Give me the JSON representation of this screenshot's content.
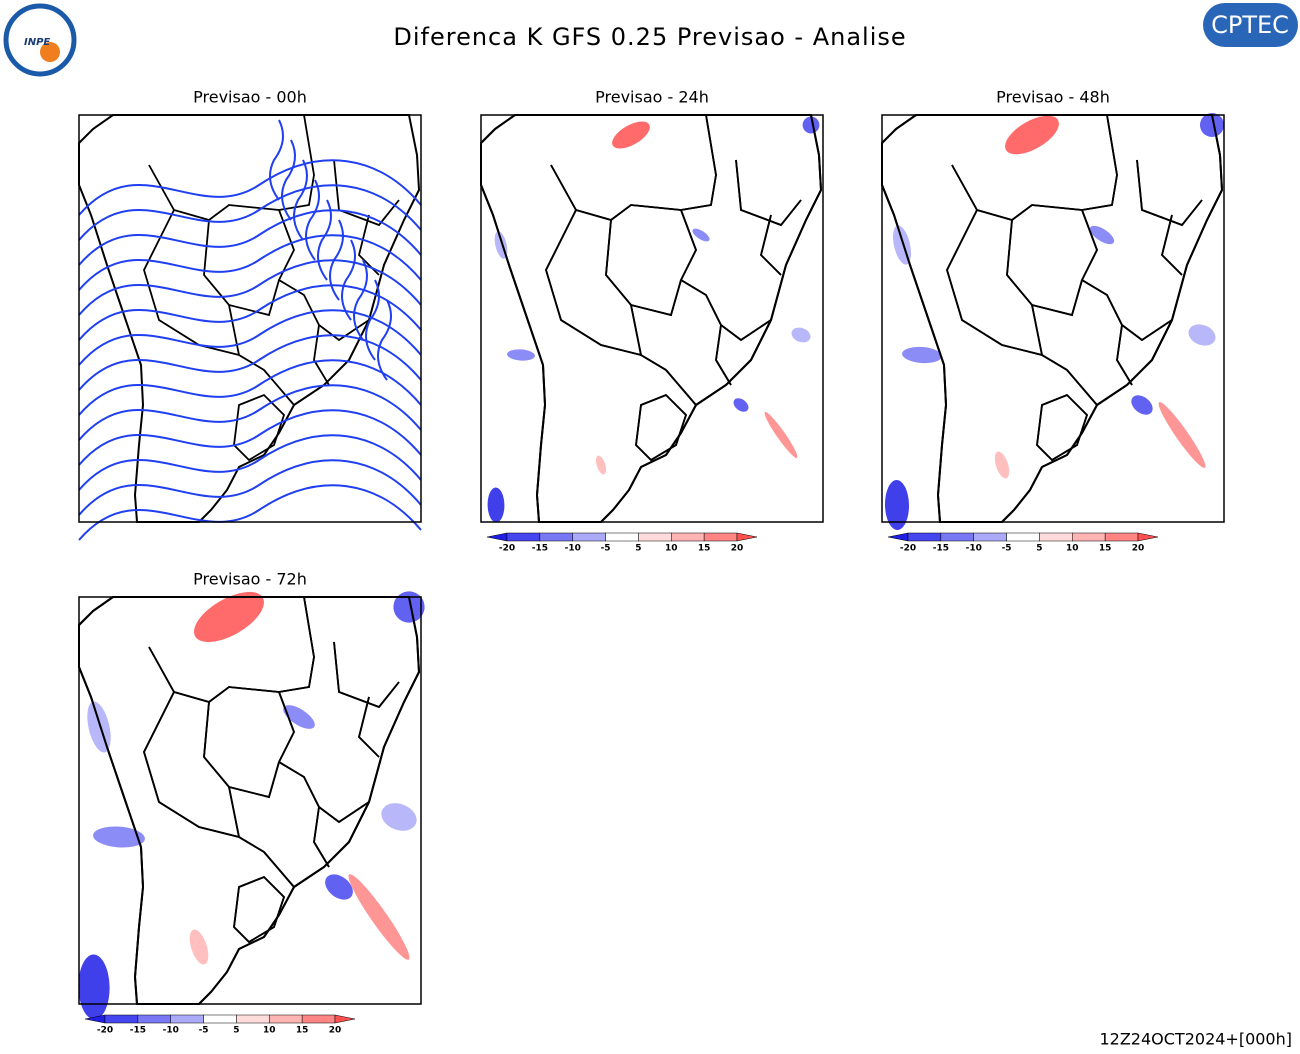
{
  "header": {
    "title": "Diferenca K GFS 0.25 Previsao - Analise",
    "left_logo": "INPE",
    "right_logo": "CPTEC"
  },
  "panels": [
    {
      "title": "Previsao - 00h",
      "colorbar": false
    },
    {
      "title": "Previsao - 24h",
      "colorbar": true
    },
    {
      "title": "Previsao - 48h",
      "colorbar": true
    },
    {
      "title": "Previsao - 72h",
      "colorbar": true
    }
  ],
  "colorbar": {
    "ticks": [
      -20,
      -15,
      -10,
      -5,
      5,
      10,
      15,
      20
    ],
    "colors": [
      "#1e1ee6",
      "#4646f0",
      "#7878f5",
      "#aaaaf8",
      "#ffffff",
      "#ffdcdc",
      "#ffb4b4",
      "#ff8484",
      "#ff5050"
    ]
  },
  "footer": "12Z24OCT2024+[000h]"
}
